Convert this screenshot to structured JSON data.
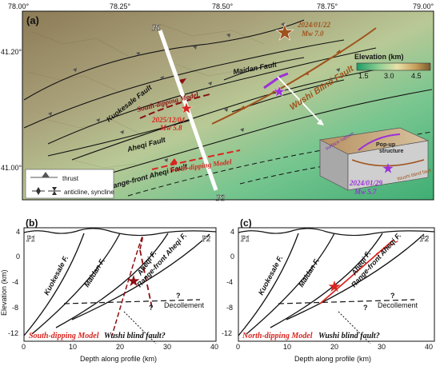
{
  "map": {
    "panel_label": "(a)",
    "lon_ticks": [
      "78.00°",
      "78.25°",
      "78.50°",
      "78.75°",
      "79.00°"
    ],
    "lat_ticks": [
      "41.20°",
      "41.00°"
    ],
    "faults": {
      "maidan": "Maidan Fault",
      "kuokesale": "Kuokesale Fault",
      "aheqi": "Aheqi Fault",
      "range_front": "Range-front Aheqi Fault",
      "wushi": "Wushi Blind Fault"
    },
    "models": {
      "south": "South-dipping Model",
      "north": "North-dipping Model"
    },
    "events": {
      "e1_date": "2024/01/22",
      "e1_mag": "Mw 7.0",
      "e2_date": "2025/12/04",
      "e2_mag": "Mw 5.8",
      "e3_date": "2024/01/29",
      "e3_mag": "Mw 5.7"
    },
    "profile": {
      "start": "P1",
      "end": "P2"
    },
    "elevation_legend": {
      "title": "Elevation (km)",
      "ticks": [
        "1.5",
        "3.0",
        "4.5"
      ]
    },
    "symbol_legend": {
      "thrust": "thrust",
      "fold": "anticline, syncline"
    },
    "block": {
      "popup_line1": "Pop-up",
      "popup_line2": "structure",
      "surface": "surface rupture",
      "blind": "Wushi blind fault"
    }
  },
  "sections": [
    {
      "panel_label": "(b)",
      "model_label": "South-dipping Model",
      "p1": "P1",
      "p2": "P2",
      "faults": [
        "Kuokesale F.",
        "Maidan F.",
        "Aheqi F.",
        "Range-front Aheqi F."
      ],
      "decollement": "Decollement",
      "wushi": "Wushi blind fault?",
      "q1": "?",
      "q2": "?"
    },
    {
      "panel_label": "(c)",
      "model_label": "North-dipping Model",
      "p1": "P1",
      "p2": "P2",
      "faults": [
        "Kuokesale F.",
        "Maidan F.",
        "Aheqi F.",
        "Range-front Aheqi F."
      ],
      "decollement": "Decollement",
      "wushi": "Wushi blind fault?",
      "q1": "?",
      "q2": "?"
    }
  ],
  "axes": {
    "y_label": "Elevation (km)",
    "x_label": "Depth along profile (km)",
    "y_ticks": [
      "4",
      "0",
      "-4",
      "-8",
      "-12"
    ],
    "x_ticks": [
      "0",
      "10",
      "20",
      "30",
      "40"
    ]
  },
  "colors": {
    "red": "#d8251f",
    "darkred": "#8b0f12",
    "brown": "#a0521d",
    "purple": "#9b30d9",
    "legend_gray": "#666666"
  }
}
